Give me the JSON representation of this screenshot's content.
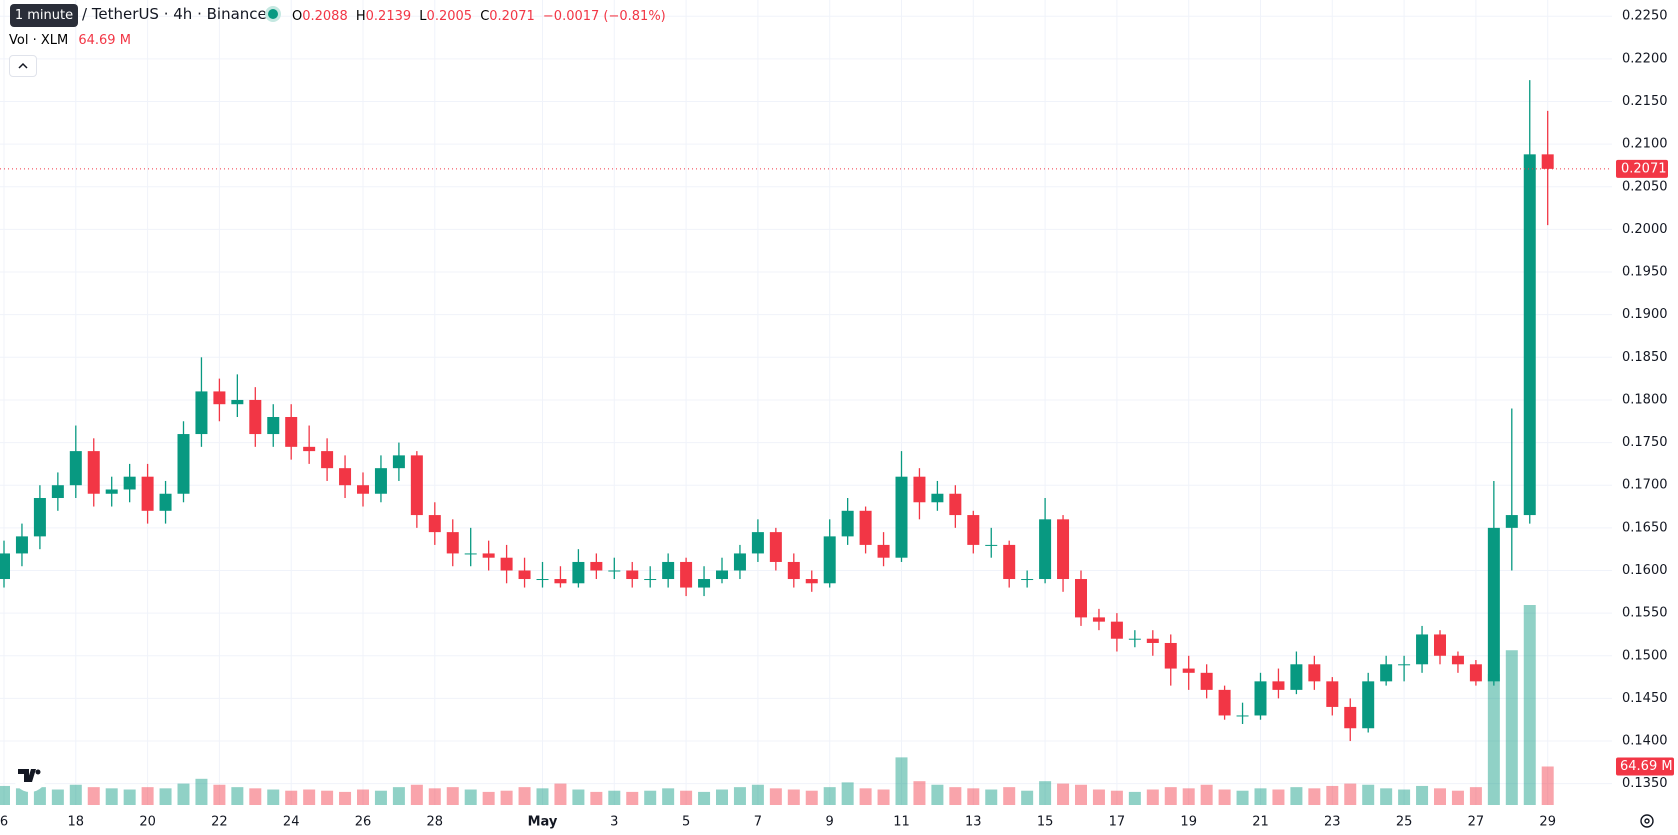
{
  "chart_data": {
    "type": "candlestick",
    "title": "/ TetherUS · 4h · Binance",
    "tooltip": "1 minute",
    "ohlc_labels": [
      "O",
      "H",
      "L",
      "C"
    ],
    "change": "−0.0017 (−0.81%)",
    "up_color": "#089981",
    "down_color": "#f23645",
    "grid": true,
    "categories": [
      "6",
      null,
      null,
      null,
      "18",
      null,
      null,
      null,
      "20",
      null,
      null,
      null,
      "22",
      null,
      null,
      null,
      "24",
      null,
      null,
      null,
      "26",
      null,
      null,
      null,
      "28",
      null,
      null,
      null,
      null,
      null,
      "May",
      null,
      null,
      null,
      "3",
      null,
      null,
      null,
      "5",
      null,
      null,
      null,
      "7",
      null,
      null,
      null,
      "9",
      null,
      null,
      null,
      "11",
      null,
      null,
      null,
      "13",
      null,
      null,
      null,
      "15",
      null,
      null,
      null,
      "17",
      null,
      null,
      null,
      "19",
      null,
      null,
      null,
      "21",
      null,
      null,
      null,
      "23",
      null,
      null,
      null,
      "25",
      null,
      null,
      null,
      "27",
      null,
      null,
      null,
      "29"
    ],
    "open": [
      0.159,
      0.162,
      0.164,
      0.1685,
      0.17,
      0.174,
      0.169,
      0.1695,
      0.171,
      0.167,
      0.169,
      0.176,
      0.181,
      0.1795,
      0.18,
      0.176,
      0.178,
      0.1745,
      0.174,
      0.172,
      0.17,
      0.169,
      0.172,
      0.1735,
      0.1665,
      0.1645,
      0.162,
      0.162,
      0.1615,
      0.16,
      0.159,
      0.159,
      0.1585,
      0.161,
      0.16,
      0.16,
      0.159,
      0.159,
      0.161,
      0.158,
      0.159,
      0.16,
      0.162,
      0.1645,
      0.161,
      0.159,
      0.1585,
      0.164,
      0.167,
      0.163,
      0.1615,
      0.171,
      0.168,
      0.169,
      0.1665,
      0.163,
      0.163,
      0.159,
      0.159,
      0.166,
      0.159,
      0.1545,
      0.154,
      0.152,
      0.152,
      0.1515,
      0.1485,
      0.148,
      0.146,
      0.143,
      0.143,
      0.147,
      0.146,
      0.149,
      0.147,
      0.144,
      0.1415,
      0.147,
      0.149,
      0.149,
      0.1525,
      0.15,
      0.149,
      0.147,
      0.165,
      0.1665,
      0.2088
    ],
    "high": [
      0.1635,
      0.1655,
      0.17,
      0.1715,
      0.177,
      0.1755,
      0.171,
      0.1725,
      0.1725,
      0.1705,
      0.1775,
      0.185,
      0.1825,
      0.183,
      0.1815,
      0.1795,
      0.1795,
      0.177,
      0.1755,
      0.1735,
      0.1715,
      0.1735,
      0.175,
      0.174,
      0.168,
      0.166,
      0.165,
      0.1635,
      0.163,
      0.1615,
      0.161,
      0.1605,
      0.1625,
      0.162,
      0.1615,
      0.161,
      0.1605,
      0.162,
      0.1615,
      0.1605,
      0.1615,
      0.163,
      0.166,
      0.165,
      0.162,
      0.16,
      0.166,
      0.1685,
      0.1675,
      0.1645,
      0.174,
      0.172,
      0.1705,
      0.17,
      0.167,
      0.165,
      0.1635,
      0.16,
      0.1685,
      0.1665,
      0.16,
      0.1555,
      0.155,
      0.153,
      0.153,
      0.1525,
      0.15,
      0.149,
      0.1465,
      0.1445,
      0.148,
      0.1485,
      0.1505,
      0.15,
      0.1475,
      0.145,
      0.148,
      0.15,
      0.15,
      0.1535,
      0.153,
      0.1505,
      0.1495,
      0.1705,
      0.179,
      0.2175,
      0.2139
    ],
    "low": [
      0.158,
      0.1605,
      0.1625,
      0.167,
      0.1685,
      0.1675,
      0.1675,
      0.168,
      0.1655,
      0.1655,
      0.168,
      0.1745,
      0.1775,
      0.178,
      0.1745,
      0.1745,
      0.173,
      0.1725,
      0.1705,
      0.1685,
      0.1675,
      0.168,
      0.1705,
      0.165,
      0.163,
      0.1605,
      0.1605,
      0.16,
      0.1585,
      0.158,
      0.158,
      0.158,
      0.158,
      0.159,
      0.159,
      0.158,
      0.158,
      0.158,
      0.157,
      0.157,
      0.1585,
      0.159,
      0.161,
      0.16,
      0.158,
      0.1575,
      0.158,
      0.163,
      0.162,
      0.1605,
      0.161,
      0.166,
      0.167,
      0.165,
      0.162,
      0.1615,
      0.158,
      0.158,
      0.1585,
      0.1575,
      0.1535,
      0.153,
      0.1505,
      0.151,
      0.15,
      0.1465,
      0.146,
      0.145,
      0.1425,
      0.142,
      0.1425,
      0.145,
      0.1455,
      0.146,
      0.143,
      0.14,
      0.141,
      0.1465,
      0.147,
      0.148,
      0.149,
      0.148,
      0.1465,
      0.1465,
      0.16,
      0.1655,
      0.2005
    ],
    "close": [
      0.162,
      0.164,
      0.1685,
      0.17,
      0.174,
      0.169,
      0.1695,
      0.171,
      0.167,
      0.169,
      0.176,
      0.181,
      0.1795,
      0.18,
      0.176,
      0.178,
      0.1745,
      0.174,
      0.172,
      0.17,
      0.169,
      0.172,
      0.1735,
      0.1665,
      0.1645,
      0.162,
      0.162,
      0.1615,
      0.16,
      0.159,
      0.159,
      0.1585,
      0.161,
      0.16,
      0.16,
      0.159,
      0.159,
      0.161,
      0.158,
      0.159,
      0.16,
      0.162,
      0.1645,
      0.161,
      0.159,
      0.1585,
      0.164,
      0.167,
      0.163,
      0.1615,
      0.171,
      0.168,
      0.169,
      0.1665,
      0.163,
      0.163,
      0.159,
      0.159,
      0.166,
      0.159,
      0.1545,
      0.154,
      0.152,
      0.152,
      0.1515,
      0.1485,
      0.148,
      0.146,
      0.143,
      0.143,
      0.147,
      0.146,
      0.149,
      0.147,
      0.144,
      0.1415,
      0.147,
      0.149,
      0.149,
      0.1525,
      0.15,
      0.149,
      0.147,
      0.165,
      0.1665,
      0.2088,
      0.2071
    ],
    "volume": {
      "name": "Vol · XLM",
      "last_label": "64.69 M",
      "values": [
        32,
        28,
        30,
        26,
        34,
        30,
        28,
        26,
        30,
        28,
        36,
        44,
        34,
        30,
        28,
        26,
        24,
        26,
        24,
        22,
        26,
        24,
        30,
        34,
        28,
        30,
        26,
        22,
        24,
        30,
        28,
        36,
        26,
        22,
        24,
        22,
        24,
        28,
        24,
        22,
        26,
        30,
        34,
        28,
        26,
        24,
        30,
        38,
        28,
        26,
        80,
        40,
        34,
        30,
        28,
        26,
        30,
        24,
        40,
        36,
        34,
        26,
        24,
        22,
        26,
        30,
        28,
        34,
        26,
        24,
        28,
        26,
        30,
        28,
        32,
        36,
        34,
        28,
        26,
        32,
        28,
        24,
        30,
        220,
        260,
        336,
        64.69
      ]
    },
    "ylim": [
      0.1325,
      0.2269
    ],
    "yticks": [
      {
        "value": 0.135,
        "label": "0.1350"
      },
      {
        "value": 0.14,
        "label": "0.1400"
      },
      {
        "value": 0.145,
        "label": "0.1450"
      },
      {
        "value": 0.15,
        "label": "0.1500"
      },
      {
        "value": 0.155,
        "label": "0.1550"
      },
      {
        "value": 0.16,
        "label": "0.1600"
      },
      {
        "value": 0.165,
        "label": "0.1650"
      },
      {
        "value": 0.17,
        "label": "0.1700"
      },
      {
        "value": 0.175,
        "label": "0.1750"
      },
      {
        "value": 0.18,
        "label": "0.1800"
      },
      {
        "value": 0.185,
        "label": "0.1850"
      },
      {
        "value": 0.19,
        "label": "0.1900"
      },
      {
        "value": 0.195,
        "label": "0.1950"
      },
      {
        "value": 0.2,
        "label": "0.2000"
      },
      {
        "value": 0.205,
        "label": "0.2050"
      },
      {
        "value": 0.21,
        "label": "0.2100"
      },
      {
        "value": 0.215,
        "label": "0.2150"
      },
      {
        "value": 0.22,
        "label": "0.2200"
      },
      {
        "value": 0.225,
        "label": "0.2250"
      }
    ]
  }
}
